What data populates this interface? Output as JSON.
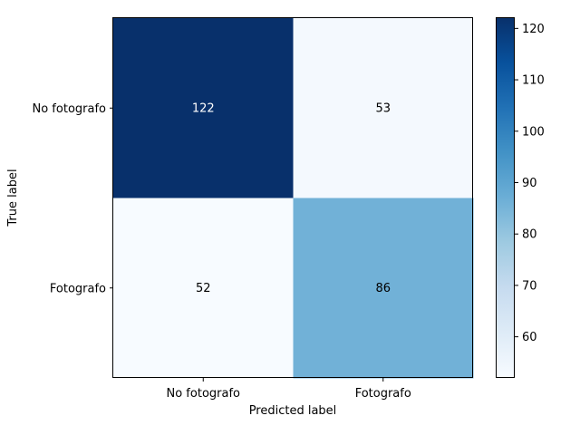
{
  "chart_data": {
    "type": "heatmap",
    "title": "",
    "xlabel": "Predicted label",
    "ylabel": "True label",
    "row_labels": [
      "No fotografo",
      "Fotografo"
    ],
    "col_labels": [
      "No fotografo",
      "Fotografo"
    ],
    "matrix": [
      [
        122,
        53
      ],
      [
        52,
        86
      ]
    ],
    "colormap": "Blues",
    "colorbar": {
      "range": [
        52,
        122
      ],
      "ticks": [
        60,
        70,
        80,
        90,
        100,
        110,
        120
      ]
    }
  }
}
